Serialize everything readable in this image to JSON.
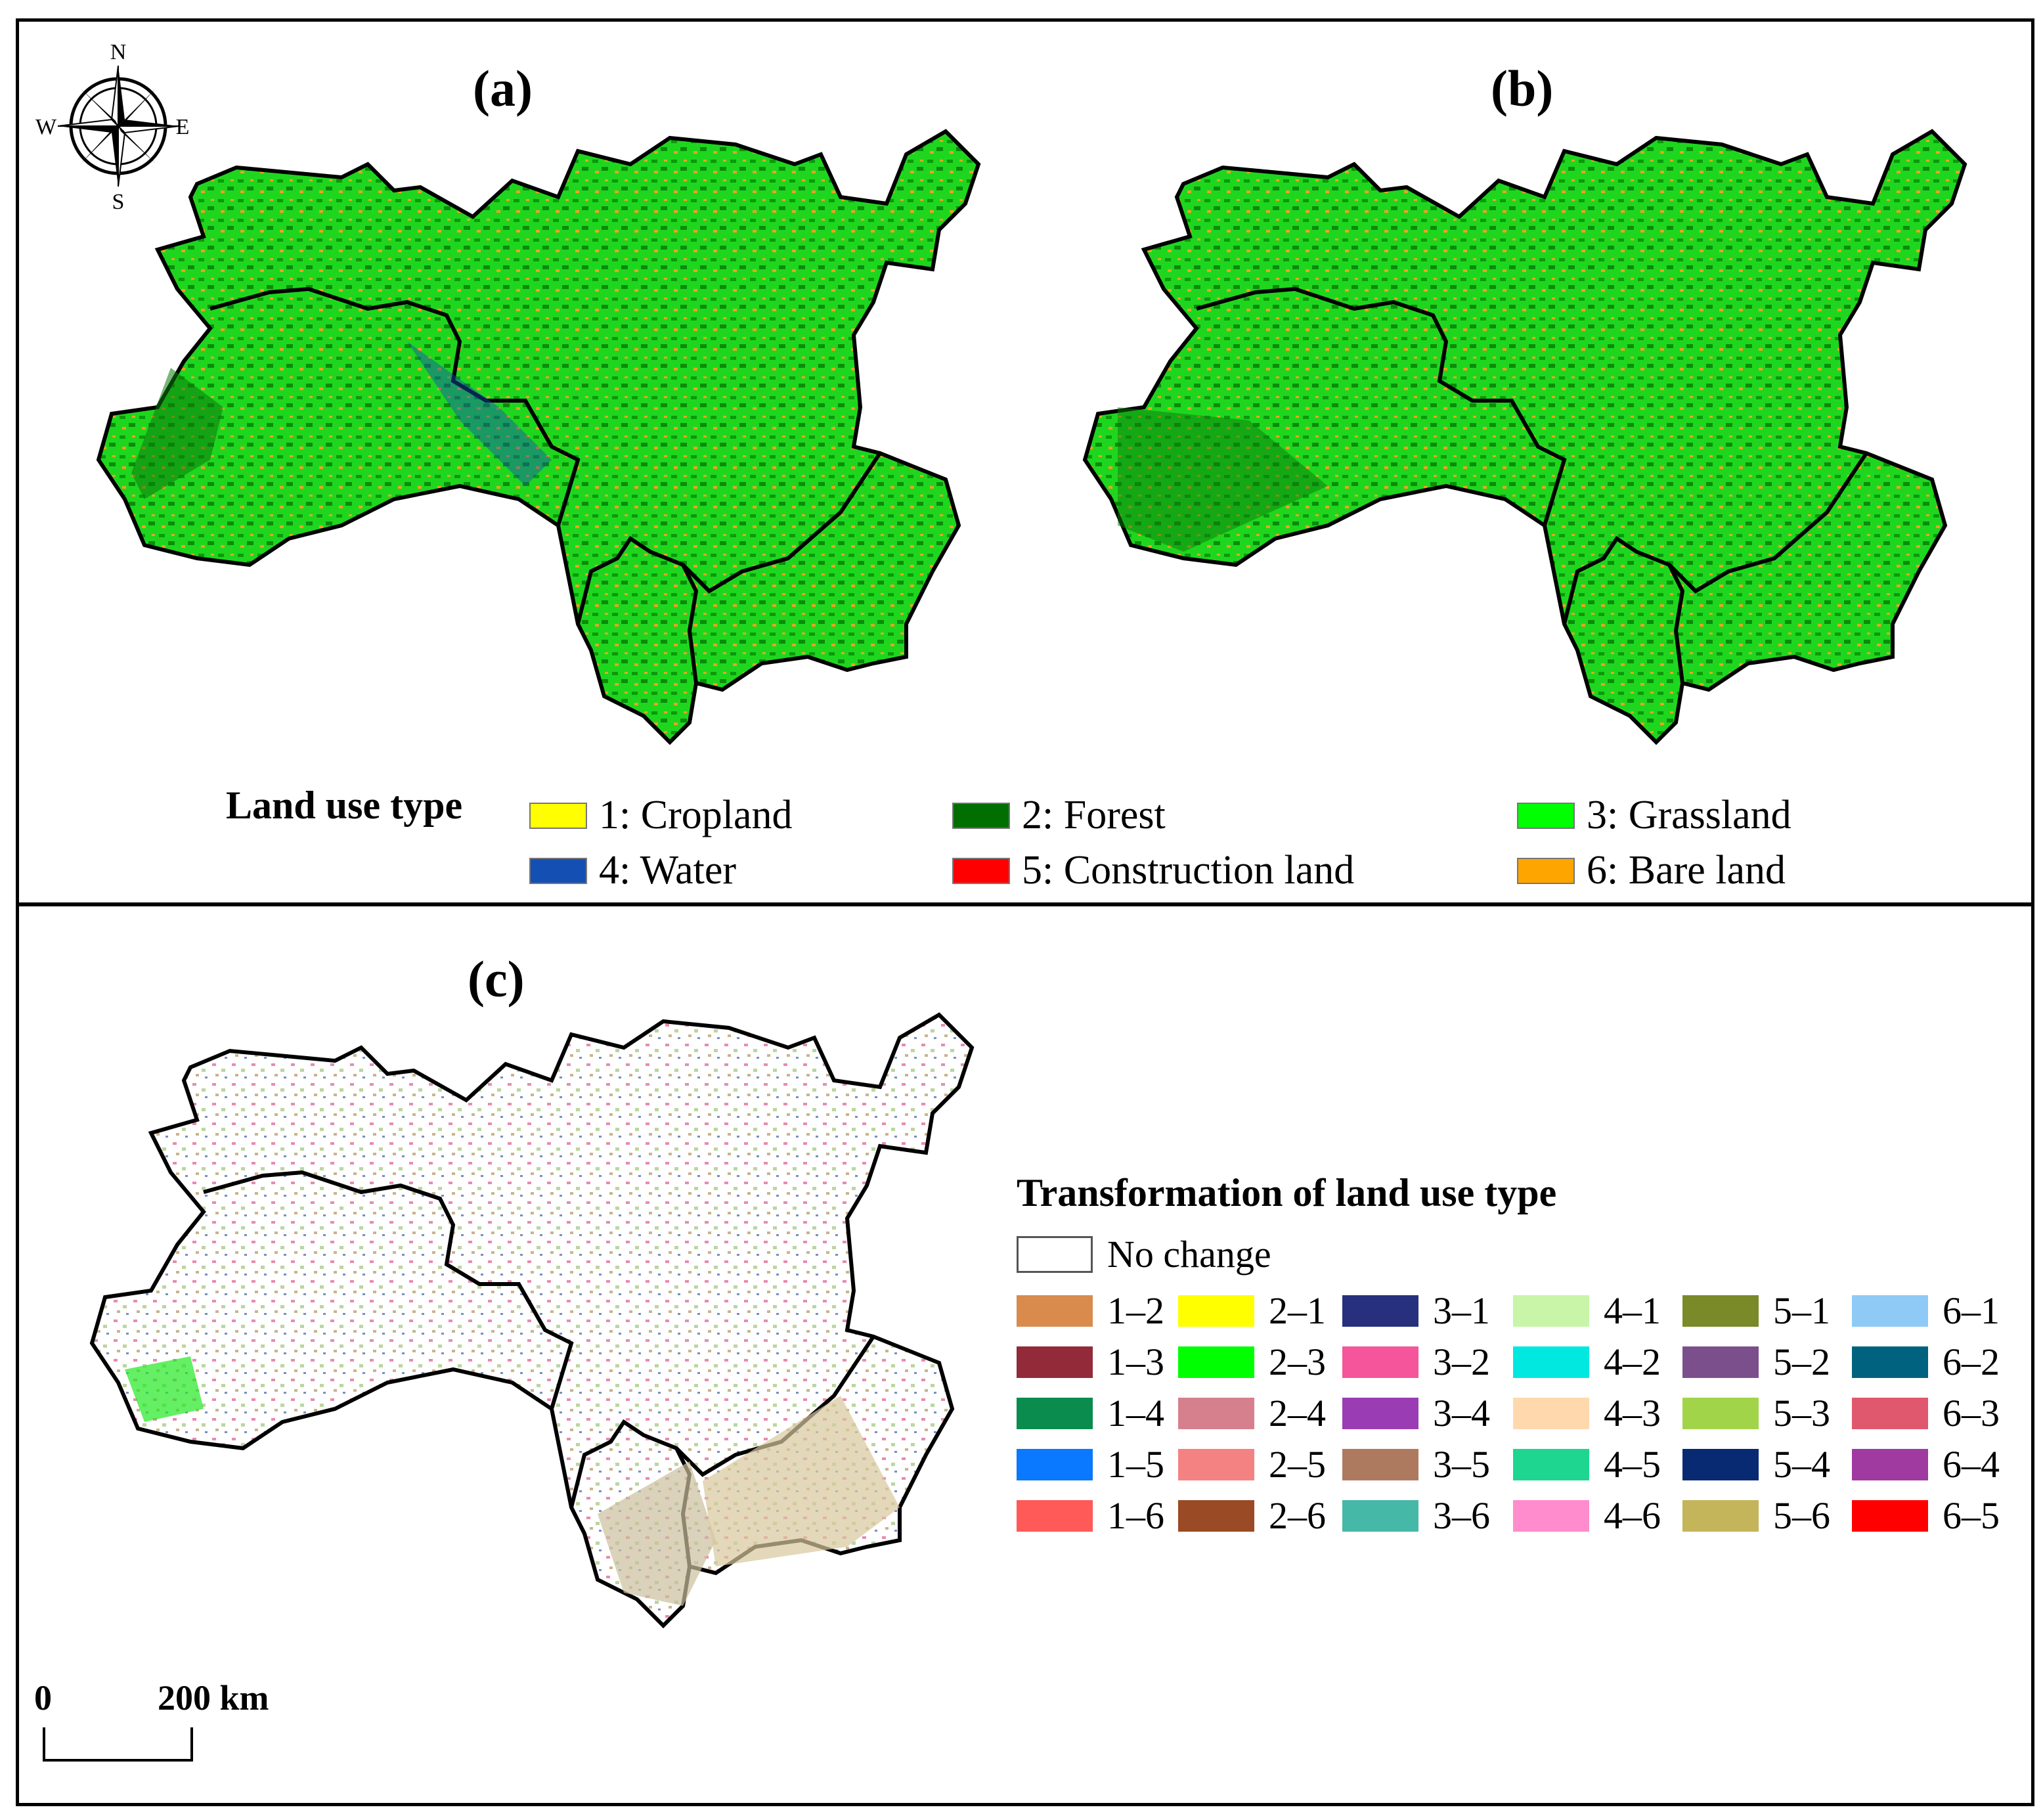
{
  "panels": {
    "a": "(a)",
    "b": "(b)",
    "c": "(c)"
  },
  "compass": {
    "n": "N",
    "s": "S",
    "e": "E",
    "w": "W"
  },
  "land_use_legend": {
    "title": "Land use type",
    "items": [
      {
        "label": "1: Cropland",
        "color": "#ffff00"
      },
      {
        "label": "2: Forest",
        "color": "#006e00"
      },
      {
        "label": "3: Grassland",
        "color": "#00ff00"
      },
      {
        "label": "4: Water",
        "color": "#1450b4"
      },
      {
        "label": "5: Construction land",
        "color": "#ff0000"
      },
      {
        "label": "6: Bare land",
        "color": "#ffa500"
      }
    ]
  },
  "transformation_legend": {
    "title": "Transformation of land use type",
    "no_change": {
      "label": "No change",
      "color": "#ffffff"
    },
    "items": [
      {
        "label": "1–2",
        "color": "#d98b4e"
      },
      {
        "label": "2–1",
        "color": "#ffff00"
      },
      {
        "label": "3–1",
        "color": "#26307d"
      },
      {
        "label": "4–1",
        "color": "#c8f5a8"
      },
      {
        "label": "5–1",
        "color": "#7a8a28"
      },
      {
        "label": "6–1",
        "color": "#8ecaf5"
      },
      {
        "label": "1–3",
        "color": "#922a3a"
      },
      {
        "label": "2–3",
        "color": "#00ff00"
      },
      {
        "label": "3–2",
        "color": "#f5559a"
      },
      {
        "label": "4–2",
        "color": "#00e8e0"
      },
      {
        "label": "5–2",
        "color": "#7b4f8c"
      },
      {
        "label": "6–2",
        "color": "#00627e"
      },
      {
        "label": "1–4",
        "color": "#0a8c4e"
      },
      {
        "label": "2–4",
        "color": "#d6808e"
      },
      {
        "label": "3–4",
        "color": "#9a3db4"
      },
      {
        "label": "4–3",
        "color": "#ffd9ad"
      },
      {
        "label": "5–3",
        "color": "#a2d44a"
      },
      {
        "label": "6–3",
        "color": "#e0586e"
      },
      {
        "label": "1–5",
        "color": "#0a78ff"
      },
      {
        "label": "2–5",
        "color": "#f58282"
      },
      {
        "label": "3–5",
        "color": "#ad7a60"
      },
      {
        "label": "4–5",
        "color": "#1ed690"
      },
      {
        "label": "5–4",
        "color": "#082a72"
      },
      {
        "label": "6–4",
        "color": "#a03aa0"
      },
      {
        "label": "1–6",
        "color": "#ff5a58"
      },
      {
        "label": "2–6",
        "color": "#9a4a24"
      },
      {
        "label": "3–6",
        "color": "#46b8a8"
      },
      {
        "label": "4–6",
        "color": "#ff8ccc"
      },
      {
        "label": "5–6",
        "color": "#c4b45a"
      },
      {
        "label": "6–5",
        "color": "#ff0000"
      }
    ]
  },
  "scale_bar": {
    "start": "0",
    "end": "200",
    "unit": "km"
  }
}
